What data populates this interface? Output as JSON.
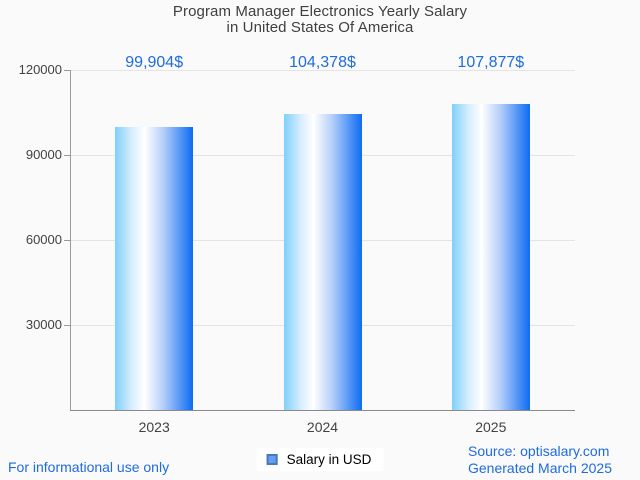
{
  "title": {
    "line1": "Program Manager Electronics Yearly Salary",
    "line2": "in United States Of America"
  },
  "chart_data": {
    "type": "bar",
    "title": "Program Manager Electronics Yearly Salary in United States Of America",
    "categories": [
      "2023",
      "2024",
      "2025"
    ],
    "values": [
      99904,
      104378,
      107877
    ],
    "value_labels": [
      "99,904$",
      "104,378$",
      "107,877$"
    ],
    "yticks": [
      30000,
      60000,
      90000,
      120000
    ],
    "ytick_labels": [
      "30000",
      "60000",
      "90000",
      "120000"
    ],
    "ylim": [
      0,
      120000
    ],
    "xlabel": "",
    "ylabel": "",
    "grid": true,
    "legend_position": "bottom",
    "legend_entries": [
      "Salary in USD"
    ]
  },
  "legend": {
    "label": "Salary in USD"
  },
  "footer": {
    "left": "For informational use only",
    "source_line1": "Source: optisalary.com",
    "source_line2": "Generated March 2025"
  },
  "colors": {
    "background": "#fafafa",
    "title_text": "#3f3f3f",
    "accent_blue": "#1f6be0",
    "grid_line": "#e4e4e4",
    "axis_line": "#9a9a9a",
    "axis_line_dark": "#8a8a8a",
    "bar_gradient_left": "#7fd0fb",
    "bar_gradient_right": "#0d6cf2",
    "legend_swatch_fill": "#63a1f0",
    "legend_swatch_border": "#4a78b8"
  }
}
